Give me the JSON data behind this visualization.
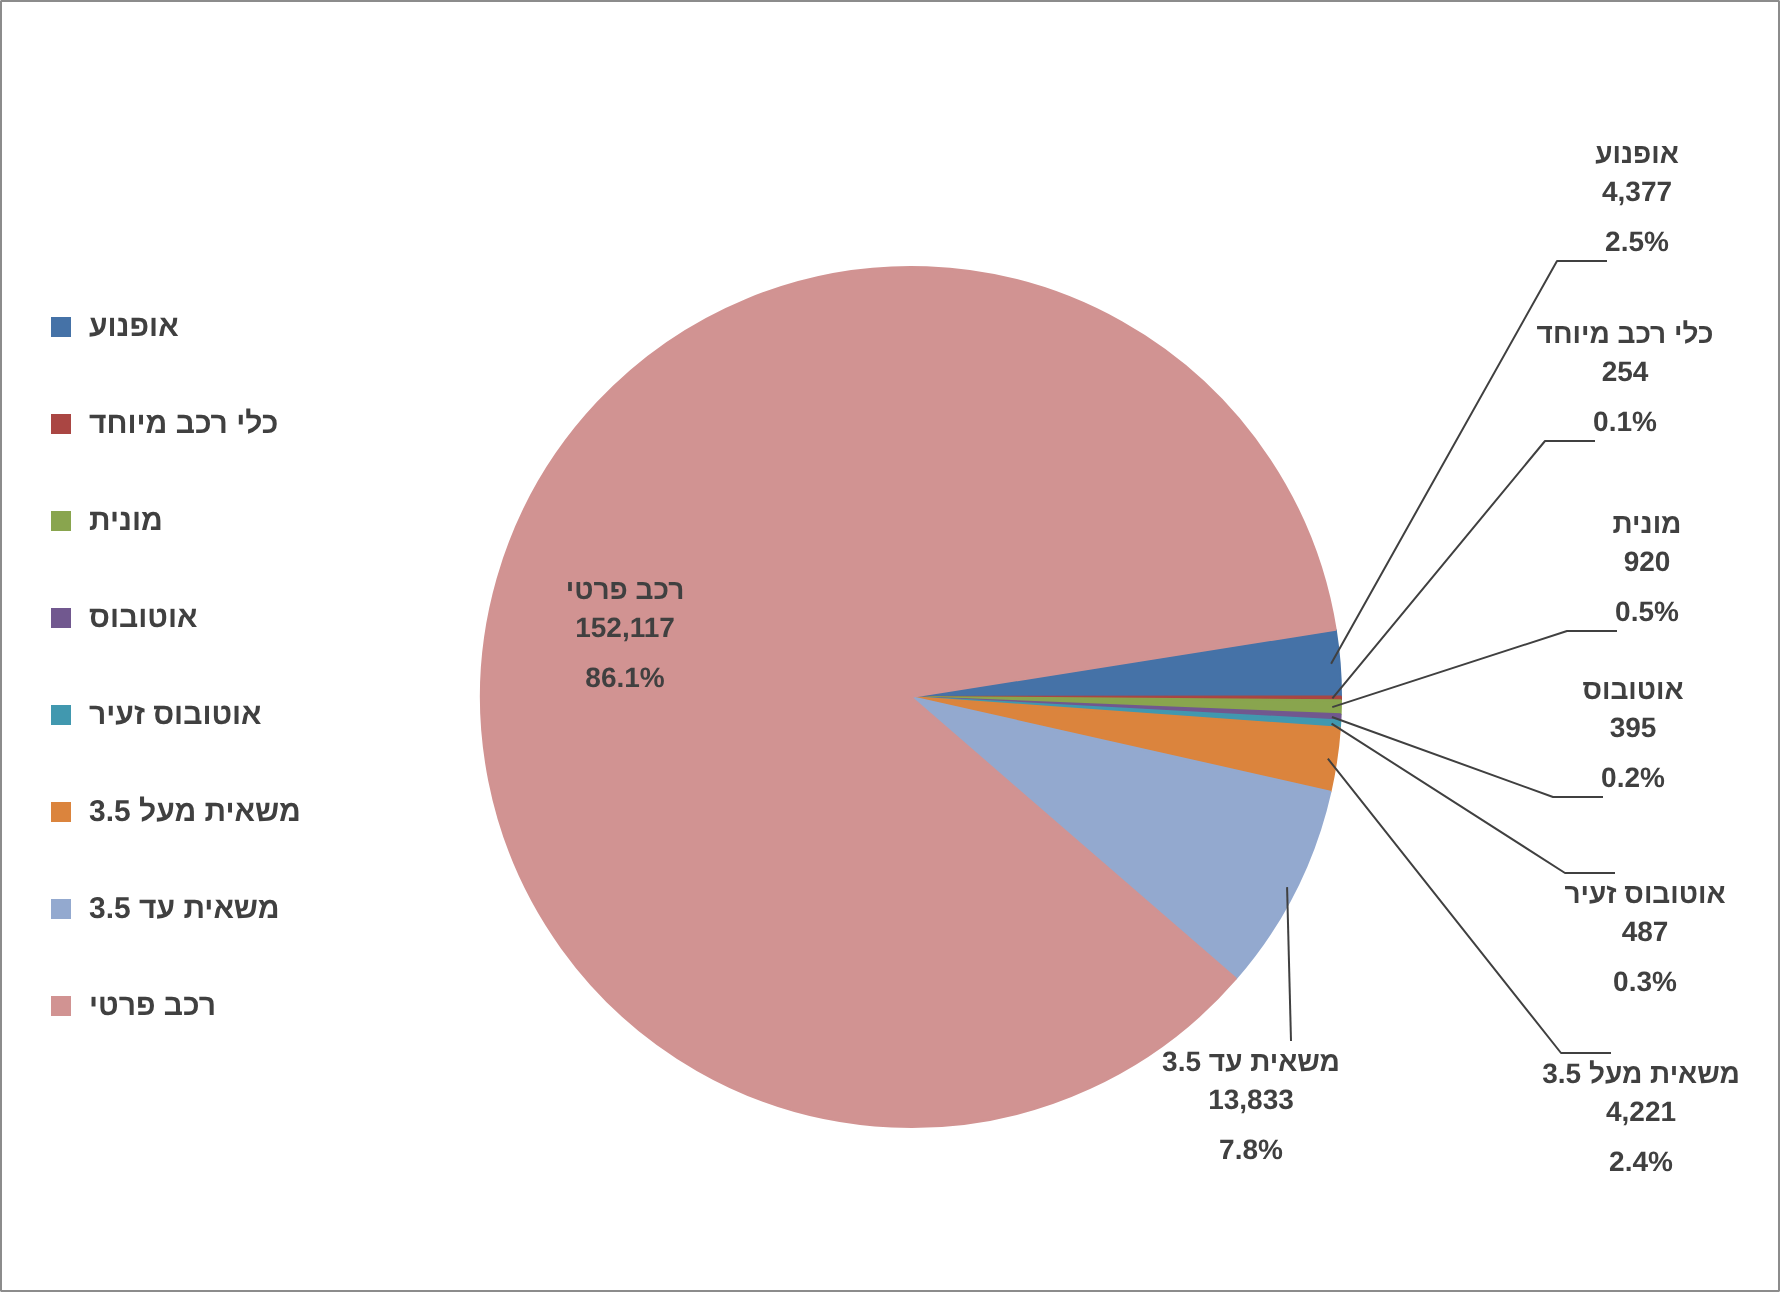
{
  "chart_data": {
    "type": "pie",
    "categories": [
      "אופנוע",
      "כלי רכב מיוחד",
      "מונית",
      "אוטובוס",
      "אוטובוס זעיר",
      "משאית מעל 3.5",
      "משאית עד 3.5",
      "רכב פרטי"
    ],
    "values": [
      4377,
      254,
      920,
      395,
      487,
      4221,
      13833,
      152117
    ],
    "value_labels": [
      "4,377\n2.5%",
      "254\n0.1%",
      "920\n0.5%",
      "395\n0.2%",
      "487\n0.3%",
      "4,221\n2.4%",
      "13,833\n7.8%",
      "152,117\n86.1%"
    ],
    "colors": [
      "#4572a7",
      "#aa4643",
      "#89a54e",
      "#71588f",
      "#4198af",
      "#db843d",
      "#93a9cf",
      "#d19392"
    ],
    "legend": "left"
  }
}
